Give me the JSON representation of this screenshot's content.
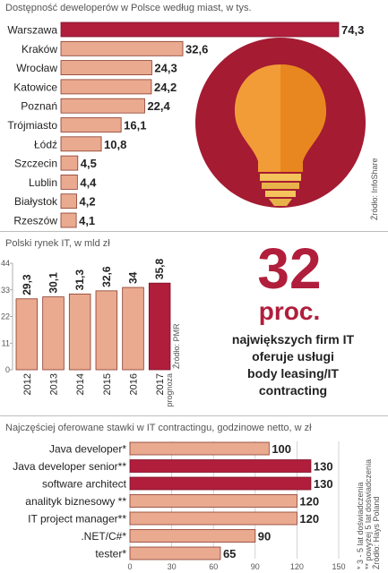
{
  "colors": {
    "highlight": "#b01e3c",
    "bar": "#e9aa90",
    "bar_stroke": "#8a3a2a",
    "bulb_circle": "#a41b32",
    "bulb_glow": "#f29c38",
    "bulb_base": "#f4c35c"
  },
  "icons": [
    "light-bulb-icon"
  ],
  "chart_data": [
    {
      "type": "bar",
      "orientation": "horizontal",
      "title": "Dostępność deweloperów w Polsce według miast, w tys.",
      "categories": [
        "Warszawa",
        "Kraków",
        "Wrocław",
        "Katowice",
        "Poznań",
        "Trójmiasto",
        "Łódź",
        "Szczecin",
        "Lublin",
        "Białystok",
        "Rzeszów"
      ],
      "values": [
        74.3,
        32.6,
        24.3,
        24.2,
        22.4,
        16.1,
        10.8,
        4.5,
        4.4,
        4.2,
        4.1
      ],
      "value_labels": [
        "74,3",
        "32,6",
        "24,3",
        "24,2",
        "22,4",
        "16,1",
        "10,8",
        "4,5",
        "4,4",
        "4,2",
        "4,1"
      ],
      "highlight_index": 0,
      "source": "Źródło: InfoShare"
    },
    {
      "type": "bar",
      "title": "Polski rynek IT, w mld zł",
      "categories": [
        "2012",
        "2013",
        "2014",
        "2015",
        "2016",
        "2017"
      ],
      "category_notes": [
        "",
        "",
        "",
        "",
        "",
        "prognoza"
      ],
      "values": [
        29.3,
        30.1,
        31.3,
        32.6,
        34,
        35.8
      ],
      "value_labels": [
        "29,3",
        "30,1",
        "31,3",
        "32,6",
        "34",
        "35,8"
      ],
      "highlight_index": 5,
      "ylim": [
        0,
        44
      ],
      "yticks": [
        "0",
        "11",
        "22",
        "33",
        "44"
      ],
      "grid": false,
      "source": "Źródło: PMR"
    },
    {
      "type": "bar",
      "orientation": "horizontal",
      "title": "Najczęściej oferowane stawki w IT contractingu, godzinowe netto, w zł",
      "categories": [
        "Java developer*",
        "Java developer senior**",
        "software architect",
        "analityk biznesowy **",
        "IT project manager**",
        ".NET/C#*",
        "tester*"
      ],
      "values": [
        100,
        130,
        130,
        120,
        120,
        90,
        65
      ],
      "value_labels": [
        "100",
        "130",
        "130",
        "120",
        "120",
        "90",
        "65"
      ],
      "highlight_indices": [
        1,
        2
      ],
      "xlim": [
        0,
        150
      ],
      "xticks": [
        "0",
        "30",
        "60",
        "90",
        "120",
        "150"
      ],
      "notes": [
        "* 3 - 5 lat doświadczenia",
        "** powyżej 5 lat doświadczenia",
        "Źródło: Hays Poland"
      ]
    }
  ],
  "callout": {
    "number": "32",
    "unit": "proc.",
    "lines": [
      "największych firm IT",
      "oferuje usługi",
      "body leasing/IT",
      "contracting"
    ]
  }
}
